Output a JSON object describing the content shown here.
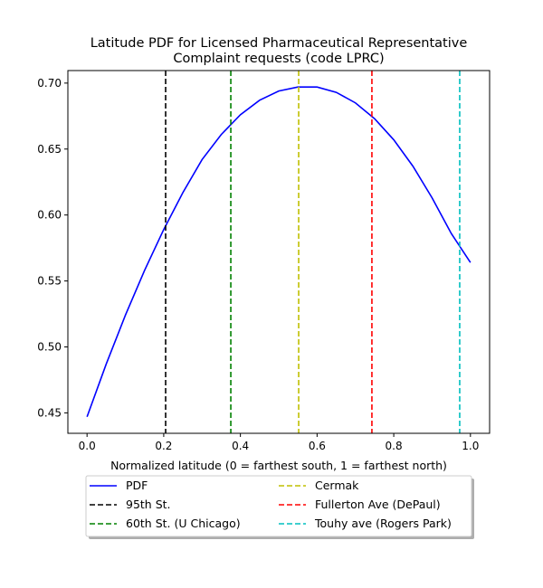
{
  "chart_data": {
    "type": "line",
    "title_line1": "Latitude PDF for Licensed Pharmaceutical Representative",
    "title_line2": "Complaint  requests (code LPRC)",
    "xlabel": "Normalized latitude (0 = farthest south, 1 = farthest north)",
    "ylabel": "",
    "xlim": [
      -0.05,
      1.05
    ],
    "ylim": [
      0.4345,
      0.7095
    ],
    "xticks": [
      0.0,
      0.2,
      0.4,
      0.6,
      0.8,
      1.0
    ],
    "xtick_labels": [
      "0.0",
      "0.2",
      "0.4",
      "0.6",
      "0.8",
      "1.0"
    ],
    "yticks": [
      0.45,
      0.5,
      0.55,
      0.6,
      0.65,
      0.7
    ],
    "ytick_labels": [
      "0.45",
      "0.50",
      "0.55",
      "0.60",
      "0.65",
      "0.70"
    ],
    "grid": false,
    "legend_placement": "below plot, two columns",
    "series": [
      {
        "name": "PDF",
        "color": "#0000ff",
        "style": "solid",
        "x": [
          0.0,
          0.05,
          0.1,
          0.15,
          0.2,
          0.25,
          0.3,
          0.35,
          0.4,
          0.45,
          0.5,
          0.55,
          0.58,
          0.6,
          0.65,
          0.7,
          0.75,
          0.8,
          0.85,
          0.9,
          0.95,
          1.0
        ],
        "y": [
          0.447,
          0.487,
          0.524,
          0.558,
          0.589,
          0.617,
          0.642,
          0.661,
          0.676,
          0.687,
          0.694,
          0.697,
          0.697,
          0.697,
          0.693,
          0.685,
          0.673,
          0.657,
          0.637,
          0.613,
          0.586,
          0.564
        ]
      }
    ],
    "vlines": [
      {
        "name": "95th St.",
        "x": 0.205,
        "color": "#000000"
      },
      {
        "name": "60th St. (U Chicago)",
        "x": 0.375,
        "color": "#008000"
      },
      {
        "name": "Cermak",
        "x": 0.552,
        "color": "#bfbf00"
      },
      {
        "name": "Fullerton Ave (DePaul)",
        "x": 0.743,
        "color": "#ff0000"
      },
      {
        "name": "Touhy ave (Rogers Park)",
        "x": 0.972,
        "color": "#00bfbf"
      }
    ]
  }
}
